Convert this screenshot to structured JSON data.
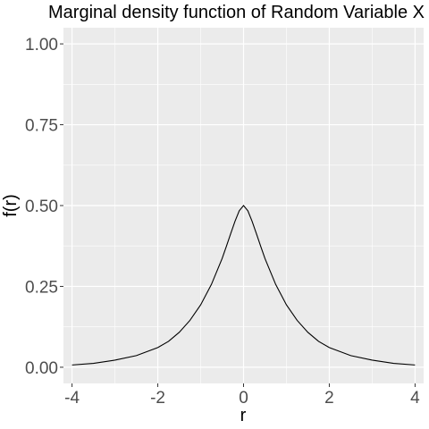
{
  "chart_data": {
    "type": "line",
    "title": "Marginal density function of Random Variable X",
    "xlabel": "r",
    "ylabel": "f(r)",
    "xlim": [
      -4.2,
      4.2
    ],
    "ylim": [
      -0.05,
      1.05
    ],
    "x_ticks": [
      -4,
      -2,
      0,
      2,
      4
    ],
    "x_tick_labels": [
      "-4",
      "-2",
      "0",
      "2",
      "4"
    ],
    "y_ticks": [
      0,
      0.25,
      0.5,
      0.75,
      1
    ],
    "y_tick_labels": [
      "0.00",
      "0.25",
      "0.50",
      "0.75",
      "1.00"
    ],
    "grid": true,
    "legend": "none",
    "colors": {
      "panel": "#ebebeb",
      "grid": "#ffffff",
      "line": "#000000",
      "tick": "#333333"
    },
    "series": [
      {
        "x": [
          -4,
          -3.5,
          -3,
          -2.5,
          -2,
          -1.75,
          -1.5,
          -1.25,
          -1,
          -0.75,
          -0.5,
          -0.4,
          -0.3,
          -0.2,
          -0.1,
          0,
          0.1,
          0.2,
          0.3,
          0.4,
          0.5,
          0.75,
          1,
          1.25,
          1.5,
          1.75,
          2,
          2.5,
          3,
          3.5,
          4
        ],
        "values": [
          0.007,
          0.012,
          0.022,
          0.036,
          0.061,
          0.08,
          0.108,
          0.145,
          0.193,
          0.256,
          0.336,
          0.374,
          0.413,
          0.451,
          0.484,
          0.5,
          0.484,
          0.451,
          0.413,
          0.374,
          0.336,
          0.256,
          0.193,
          0.145,
          0.108,
          0.08,
          0.061,
          0.036,
          0.022,
          0.012,
          0.007
        ]
      }
    ]
  }
}
